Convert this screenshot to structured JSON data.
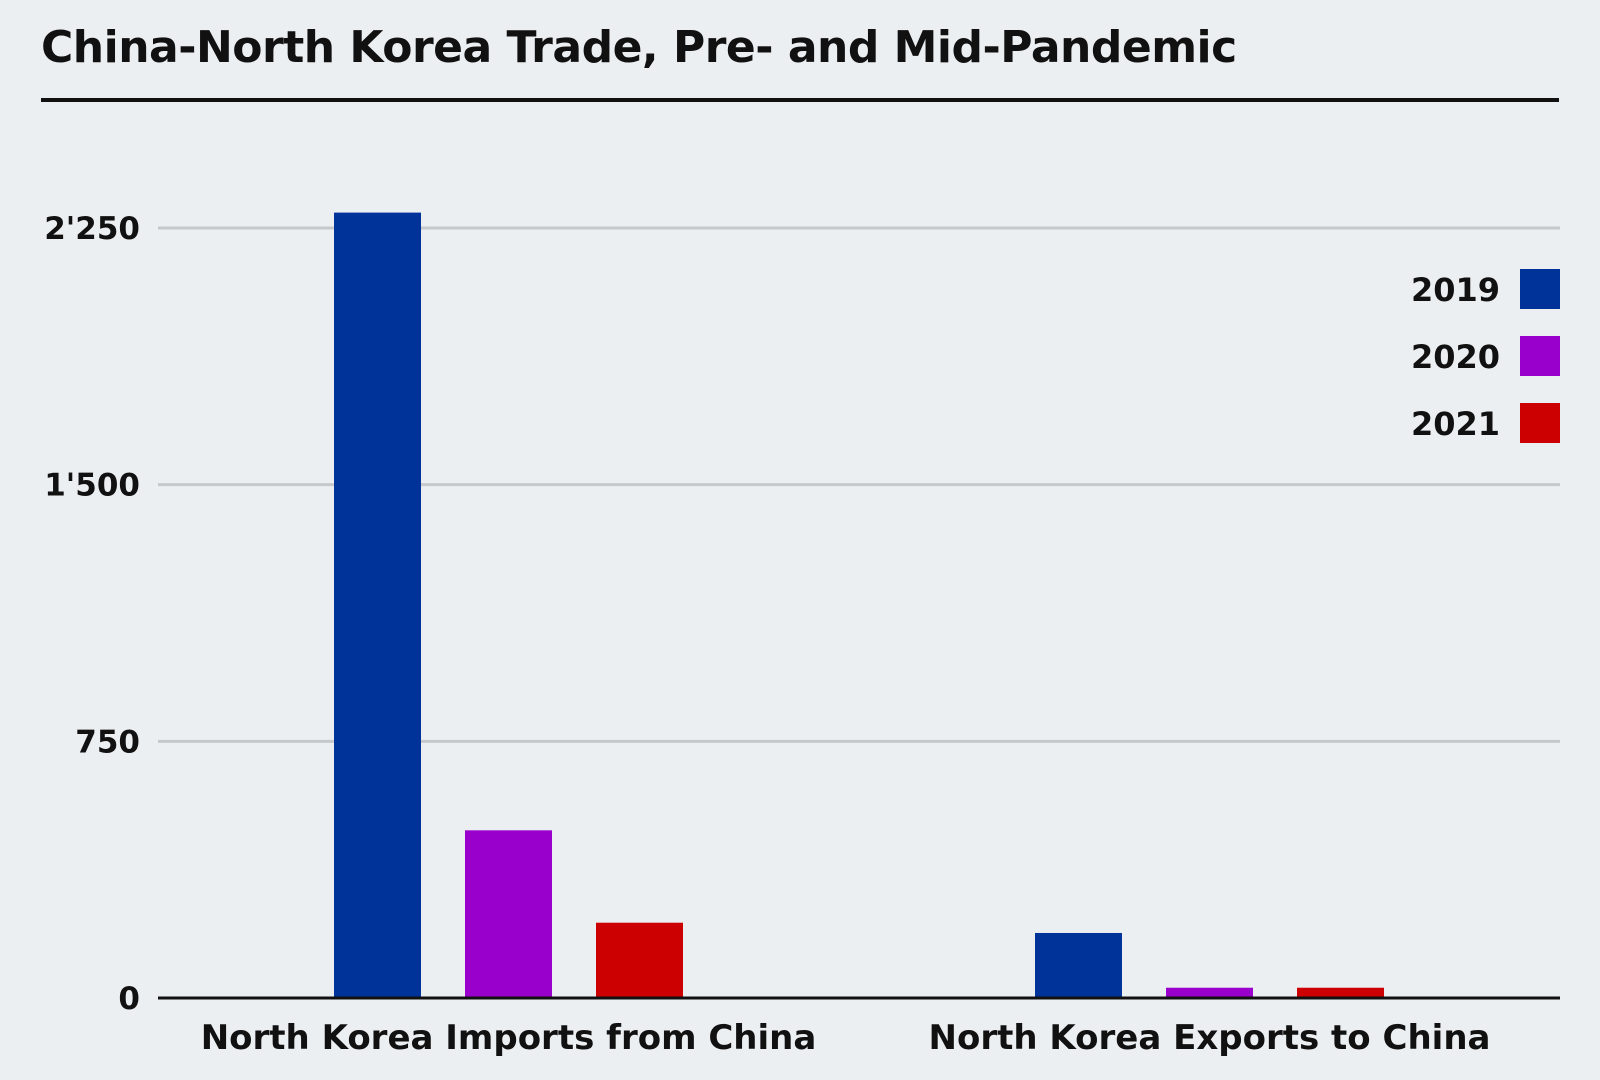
{
  "chart_data": {
    "type": "bar",
    "title": "China-North Korea Trade, Pre- and Mid-Pandemic",
    "xlabel": "",
    "ylabel": "",
    "categories": [
      "North Korea Imports from China",
      "North Korea Exports to China"
    ],
    "series": [
      {
        "name": "2019",
        "color": "#003399",
        "values": [
          2295,
          190
        ]
      },
      {
        "name": "2020",
        "color": "#9900cc",
        "values": [
          490,
          30
        ]
      },
      {
        "name": "2021",
        "color": "#cc0000",
        "values": [
          220,
          30
        ]
      }
    ],
    "ylim": [
      0,
      2250
    ],
    "yticks": [
      0,
      750,
      1500,
      2250
    ],
    "ytick_labels": [
      "0",
      "750",
      "1'500",
      "2'250"
    ],
    "grid": true,
    "legend": "right"
  }
}
